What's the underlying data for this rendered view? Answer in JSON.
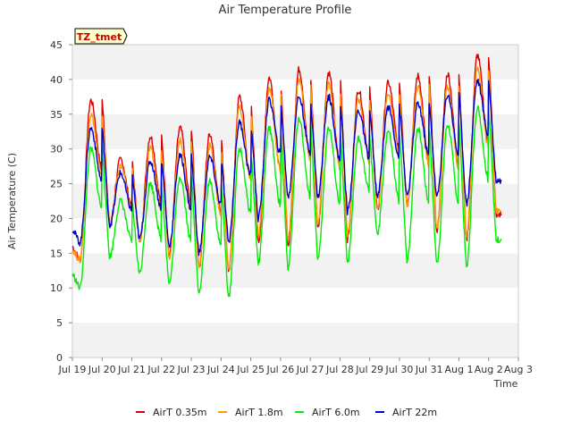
{
  "chart_data": {
    "type": "line",
    "title": "Air Temperature Profile",
    "xlabel": "Time",
    "ylabel": "Air Temperature (C)",
    "ylim": [
      0,
      45
    ],
    "yticks": [
      0,
      5,
      10,
      15,
      20,
      25,
      30,
      35,
      40,
      45
    ],
    "xlim": [
      "Jul 19",
      "Aug 3"
    ],
    "xticks": [
      "Jul 19",
      "Jul 20",
      "Jul 21",
      "Jul 22",
      "Jul 23",
      "Jul 24",
      "Jul 25",
      "Jul 26",
      "Jul 27",
      "Jul 28",
      "Jul 29",
      "Jul 30",
      "Jul 31",
      "Aug 1",
      "Aug 2",
      "Aug 3"
    ],
    "grid": "horizontal alternating bands",
    "legend_position": "bottom",
    "annotation": "TZ_tmet",
    "days": [
      "Jul 19",
      "Jul 20",
      "Jul 21",
      "Jul 22",
      "Jul 23",
      "Jul 24",
      "Jul 25",
      "Jul 26",
      "Jul 27",
      "Jul 28",
      "Jul 29",
      "Jul 30",
      "Jul 31",
      "Aug 1",
      "Aug 2"
    ],
    "series": [
      {
        "name": "AirT 0.35m",
        "color": "#dd0000",
        "start": 16.0,
        "daily_min": [
          14.0,
          19.0,
          16.5,
          14.5,
          13.0,
          12.0,
          16.5,
          16.0,
          18.5,
          17.0,
          21.0,
          22.0,
          18.0,
          17.0,
          20.5
        ],
        "daily_max": [
          37.0,
          28.5,
          31.8,
          33.0,
          32.2,
          37.5,
          40.3,
          41.5,
          41.0,
          38.5,
          39.5,
          40.5,
          40.8,
          43.5,
          21.0
        ]
      },
      {
        "name": "AirT 1.8m",
        "color": "#ff9900",
        "start": 15.5,
        "daily_min": [
          14.0,
          19.0,
          16.5,
          14.5,
          13.0,
          12.5,
          17.5,
          17.0,
          19.0,
          17.5,
          21.0,
          22.0,
          18.5,
          17.5,
          21.0
        ],
        "daily_max": [
          35.0,
          27.5,
          30.0,
          31.2,
          30.5,
          36.0,
          38.8,
          40.0,
          39.5,
          37.0,
          38.0,
          39.0,
          39.0,
          41.5,
          21.0
        ]
      },
      {
        "name": "AirT 6.0m",
        "color": "#00ee00",
        "start": 12.0,
        "daily_min": [
          10.0,
          14.5,
          12.0,
          10.5,
          9.0,
          8.5,
          13.5,
          13.0,
          14.0,
          13.5,
          17.5,
          14.0,
          13.5,
          13.0,
          17.0
        ],
        "daily_max": [
          30.0,
          22.5,
          25.0,
          26.0,
          25.5,
          30.0,
          33.0,
          34.5,
          33.0,
          31.5,
          32.5,
          33.0,
          33.5,
          36.0,
          17.0
        ]
      },
      {
        "name": "AirT 22m",
        "color": "#0000cc",
        "start": 18.5,
        "daily_min": [
          16.5,
          19.0,
          17.0,
          16.0,
          15.0,
          16.5,
          20.0,
          23.0,
          23.0,
          21.0,
          23.0,
          23.0,
          23.0,
          22.0,
          25.5
        ],
        "daily_max": [
          33.0,
          26.5,
          28.2,
          29.0,
          28.8,
          33.8,
          37.0,
          37.5,
          37.5,
          35.5,
          36.0,
          36.5,
          37.8,
          39.8,
          25.5
        ]
      }
    ]
  }
}
